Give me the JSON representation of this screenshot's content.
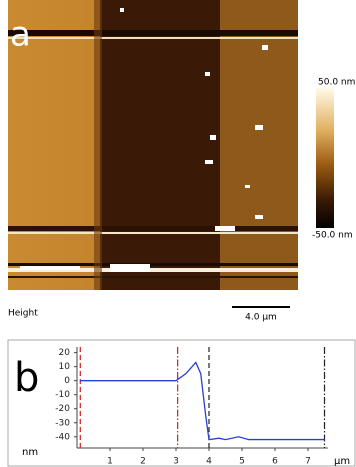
{
  "panel_a": {
    "label": "a",
    "colorbar_max": "50.0 nm",
    "colorbar_min": "-50.0 nm",
    "channel": "Height",
    "scale_bar": "4.0 µm"
  },
  "chart_data": {
    "type": "line",
    "panel_label": "b",
    "x_unit": "µm",
    "y_unit": "nm",
    "xlim": [
      0,
      7.6
    ],
    "ylim": [
      -48,
      24
    ],
    "xticks": [
      1,
      2,
      3,
      4,
      5,
      6,
      7
    ],
    "yticks": [
      20,
      10,
      0,
      -10,
      -20,
      -30,
      -40
    ],
    "series": [
      {
        "color": "#2b3fd6",
        "x": [
          0.1,
          3.0,
          3.3,
          3.6,
          3.75,
          3.9,
          4.0,
          4.3,
          4.5,
          4.9,
          5.2,
          7.5
        ],
        "values": [
          0,
          0,
          5,
          13,
          5,
          -25,
          -42,
          -41,
          -42,
          -40,
          -42,
          -42
        ]
      }
    ],
    "markers": [
      {
        "x": 0.1,
        "color": "#d62020",
        "style": "dashed"
      },
      {
        "x": 3.05,
        "color": "#d62020",
        "style": "dashdot"
      },
      {
        "x": 4.0,
        "color": "#222222",
        "style": "dashed"
      },
      {
        "x": 7.5,
        "color": "#222222",
        "style": "dashdot"
      }
    ]
  }
}
